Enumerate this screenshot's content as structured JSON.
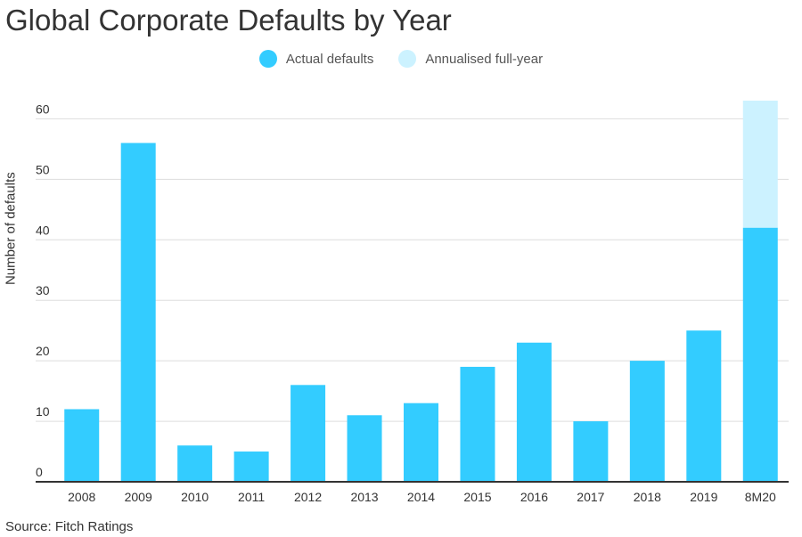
{
  "chart_data": {
    "type": "bar",
    "title": "Global Corporate Defaults by Year",
    "ylabel": "Number of defaults",
    "xlabel": "",
    "source": "Source: Fitch Ratings",
    "categories": [
      "2008",
      "2009",
      "2010",
      "2011",
      "2012",
      "2013",
      "2014",
      "2015",
      "2016",
      "2017",
      "2018",
      "2019",
      "8M20"
    ],
    "series": [
      {
        "name": "Actual defaults",
        "color": "#33ccff",
        "values": [
          12,
          56,
          6,
          5,
          16,
          11,
          13,
          19,
          23,
          10,
          20,
          25,
          42
        ]
      },
      {
        "name": "Annualised full-year",
        "color": "#ccf2ff",
        "values": [
          0,
          0,
          0,
          0,
          0,
          0,
          0,
          0,
          0,
          0,
          0,
          0,
          21
        ]
      }
    ],
    "stacked": true,
    "ylim": [
      0,
      63
    ],
    "yticks": [
      0,
      10,
      20,
      30,
      40,
      50,
      60
    ],
    "grid": true,
    "legend": "top-center"
  }
}
